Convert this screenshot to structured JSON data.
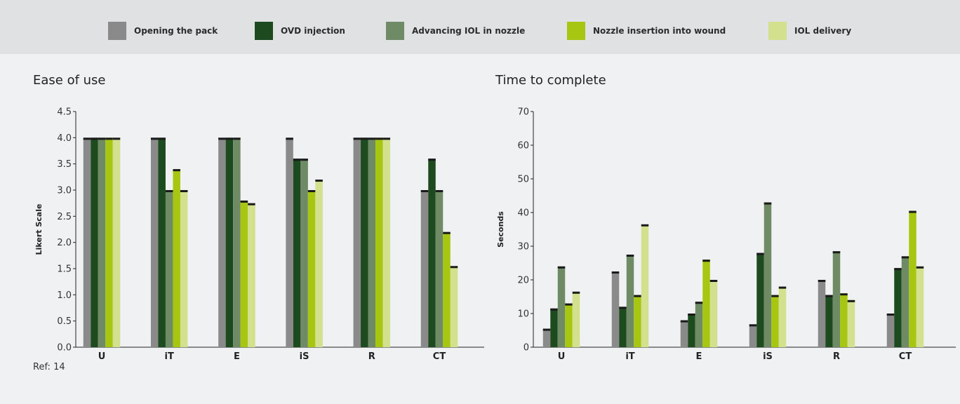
{
  "legend": [
    {
      "label": "Opening the pack",
      "color": "#8a8a8a"
    },
    {
      "label": "OVD injection",
      "color": "#1d4a1e"
    },
    {
      "label": "Advancing IOL in nozzle",
      "color": "#6f8b66"
    },
    {
      "label": "Nozzle insertion into wound",
      "color": "#a7c611"
    },
    {
      "label": "IOL delivery",
      "color": "#d3e08d"
    }
  ],
  "ref_text": "Ref: 14",
  "chart_data": [
    {
      "type": "bar",
      "title": "Ease of use",
      "ylabel": "Likert Scale",
      "ylim": [
        0,
        4.5
      ],
      "yticks": [
        "0.0",
        "0.5",
        "1.0",
        "1.5",
        "2.0",
        "2.5",
        "3.0",
        "3.5",
        "4.0",
        "4.5"
      ],
      "categories": [
        "U",
        "iT",
        "E",
        "iS",
        "R",
        "CT"
      ],
      "series": [
        {
          "name": "Opening the pack",
          "values": [
            4.0,
            4.0,
            4.0,
            4.0,
            4.0,
            3.0
          ]
        },
        {
          "name": "OVD injection",
          "values": [
            4.0,
            4.0,
            4.0,
            3.6,
            4.0,
            3.6
          ]
        },
        {
          "name": "Advancing IOL in nozzle",
          "values": [
            4.0,
            3.0,
            4.0,
            3.6,
            4.0,
            3.0
          ]
        },
        {
          "name": "Nozzle insertion into wound",
          "values": [
            4.0,
            3.4,
            2.8,
            3.0,
            4.0,
            2.2
          ]
        },
        {
          "name": "IOL delivery",
          "values": [
            4.0,
            3.0,
            2.75,
            3.2,
            4.0,
            1.55
          ]
        }
      ]
    },
    {
      "type": "bar",
      "title": "Time to complete",
      "ylabel": "Seconds",
      "ylim": [
        0,
        70
      ],
      "yticks": [
        "0",
        "10",
        "20",
        "30",
        "40",
        "50",
        "60",
        "70"
      ],
      "categories": [
        "U",
        "iT",
        "E",
        "iS",
        "R",
        "CT"
      ],
      "series": [
        {
          "name": "Opening the pack",
          "values": [
            5.5,
            22.5,
            8,
            6.8,
            20,
            10
          ]
        },
        {
          "name": "OVD injection",
          "values": [
            11.5,
            12,
            10,
            28,
            15.5,
            23.5
          ]
        },
        {
          "name": "Advancing IOL in nozzle",
          "values": [
            24,
            27.5,
            13.5,
            43,
            28.5,
            27
          ]
        },
        {
          "name": "Nozzle insertion into wound",
          "values": [
            13,
            15.5,
            26,
            15.5,
            16,
            40.5
          ]
        },
        {
          "name": "IOL delivery",
          "values": [
            16.5,
            36.5,
            20,
            18,
            14,
            24
          ]
        }
      ]
    }
  ]
}
